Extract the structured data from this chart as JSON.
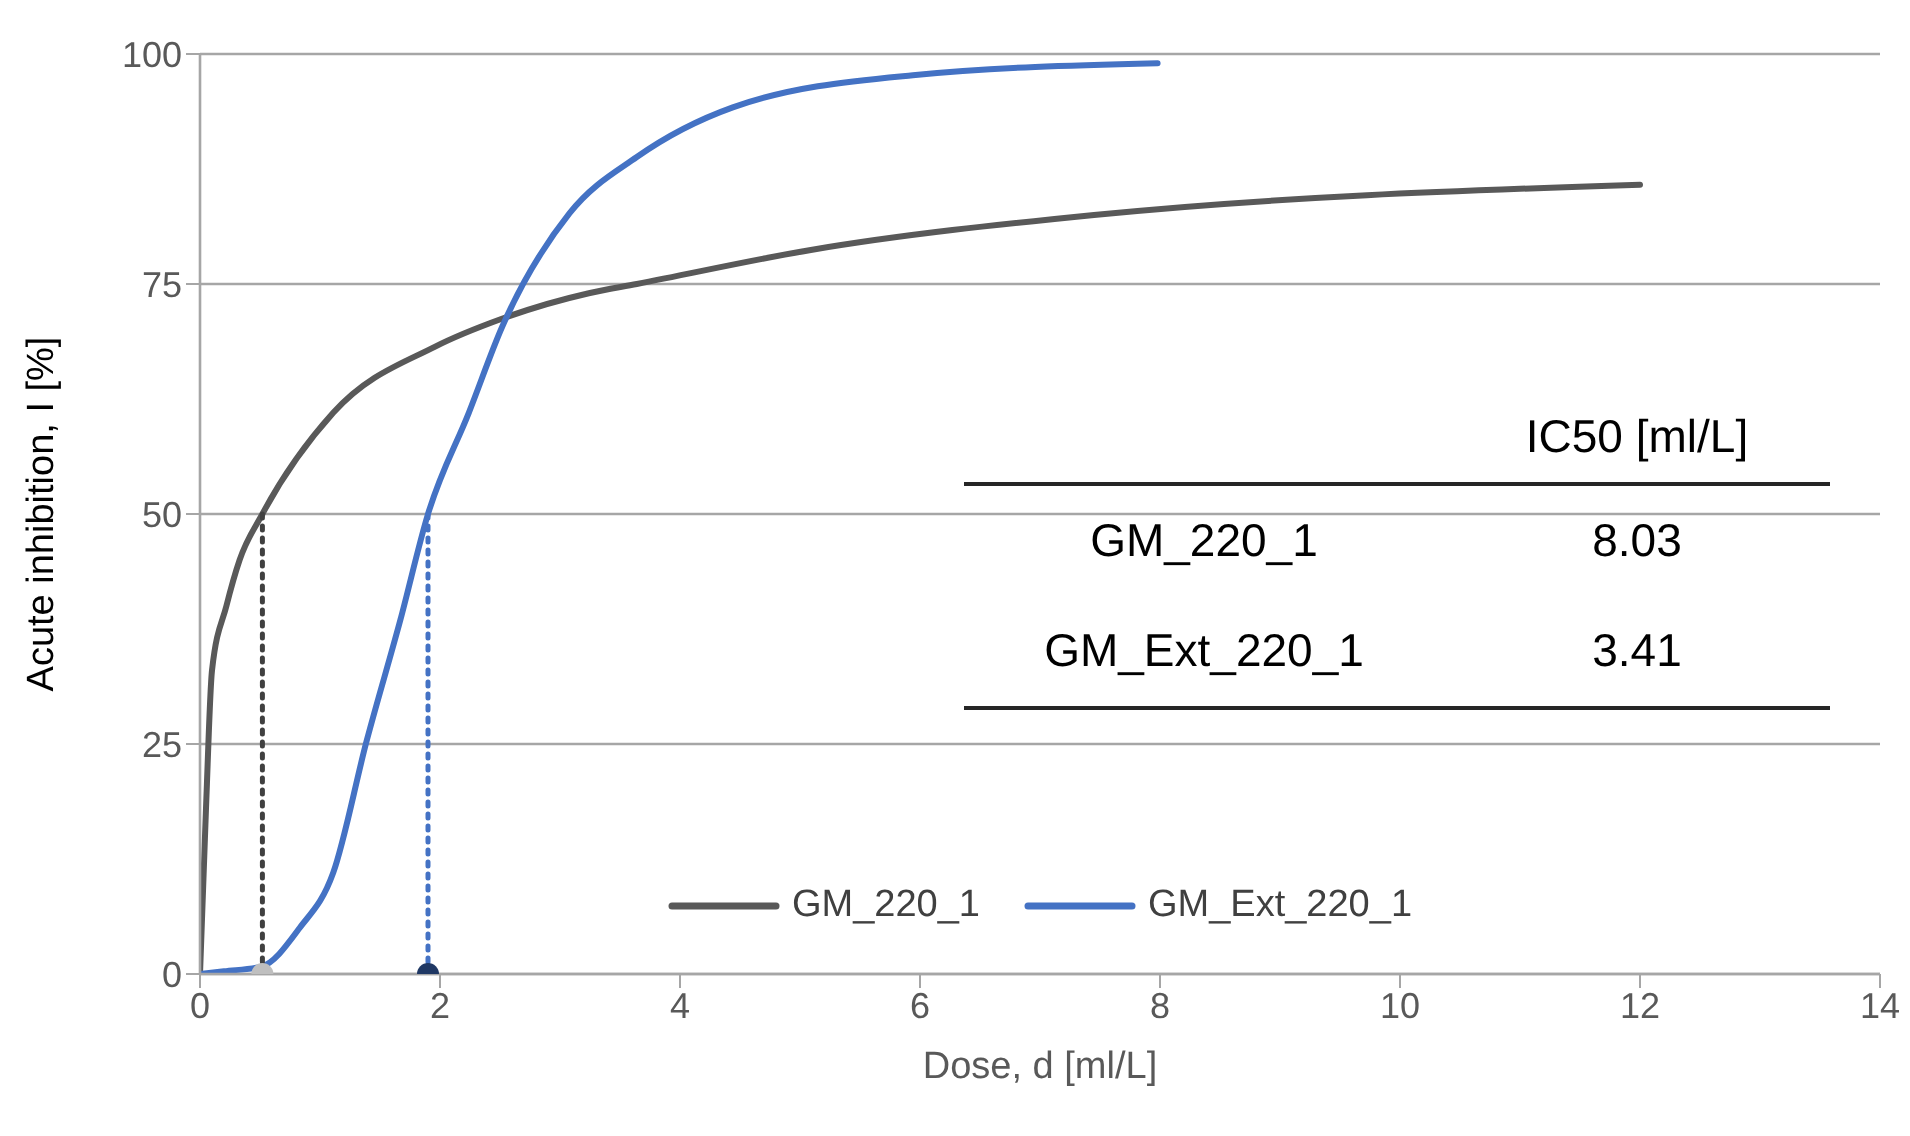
{
  "chart_data": {
    "type": "line",
    "xlabel": "Dose, d [ml/L]",
    "ylabel": "Acute inhibition, I [%]",
    "xlim": [
      0,
      14
    ],
    "xticks": [
      0,
      2,
      4,
      6,
      8,
      10,
      12,
      14
    ],
    "ylim": [
      0,
      100
    ],
    "yticks": [
      0,
      25,
      50,
      75,
      100
    ],
    "grid": "y",
    "legend": "bottom",
    "marker": "none",
    "series": [
      {
        "name": "GM_220_1",
        "color": "#595959",
        "x": [
          0,
          0.05,
          0.1,
          0.22,
          0.33,
          0.52,
          1.11,
          1.96,
          2.51,
          3.24,
          3.64,
          5.09,
          7.45,
          12
        ],
        "values": [
          0,
          18,
          33,
          40,
          45,
          50,
          61,
          68.2,
          71.2,
          74,
          75,
          78.7,
          82.5,
          85.8
        ]
      },
      {
        "name": "GM_Ext_220_1",
        "color": "#4472c4",
        "x": [
          0,
          0.2,
          0.51,
          0.83,
          1.11,
          1.39,
          1.67,
          1.9,
          2.24,
          2.52,
          3.08,
          3.64,
          4.44,
          5.94,
          7.98
        ],
        "values": [
          0,
          0.3,
          0.8,
          5,
          11,
          25.4,
          38.5,
          50,
          61,
          70.4,
          82.7,
          88.8,
          94.2,
          97.7,
          99
        ]
      },
      {
        "type": "line",
        "line_style": "dotted",
        "color": "#404040",
        "x": [
          0.52,
          0.52
        ],
        "values": [
          0,
          50
        ]
      },
      {
        "type": "line",
        "line_style": "dotted",
        "color": "#4472c4",
        "x": [
          1.9,
          1.9
        ],
        "values": [
          0,
          50
        ]
      },
      {
        "type": "scatter",
        "marker": "circle",
        "colors": [
          "#bfbfbf",
          "#1f3864"
        ],
        "x": [
          0.52,
          1.9
        ],
        "values": [
          0,
          0
        ]
      }
    ],
    "annotations": [
      "IC50 [ml/L]",
      "GM_220_1",
      "8.03",
      "GM_Ext_220_1",
      "3.41"
    ]
  }
}
